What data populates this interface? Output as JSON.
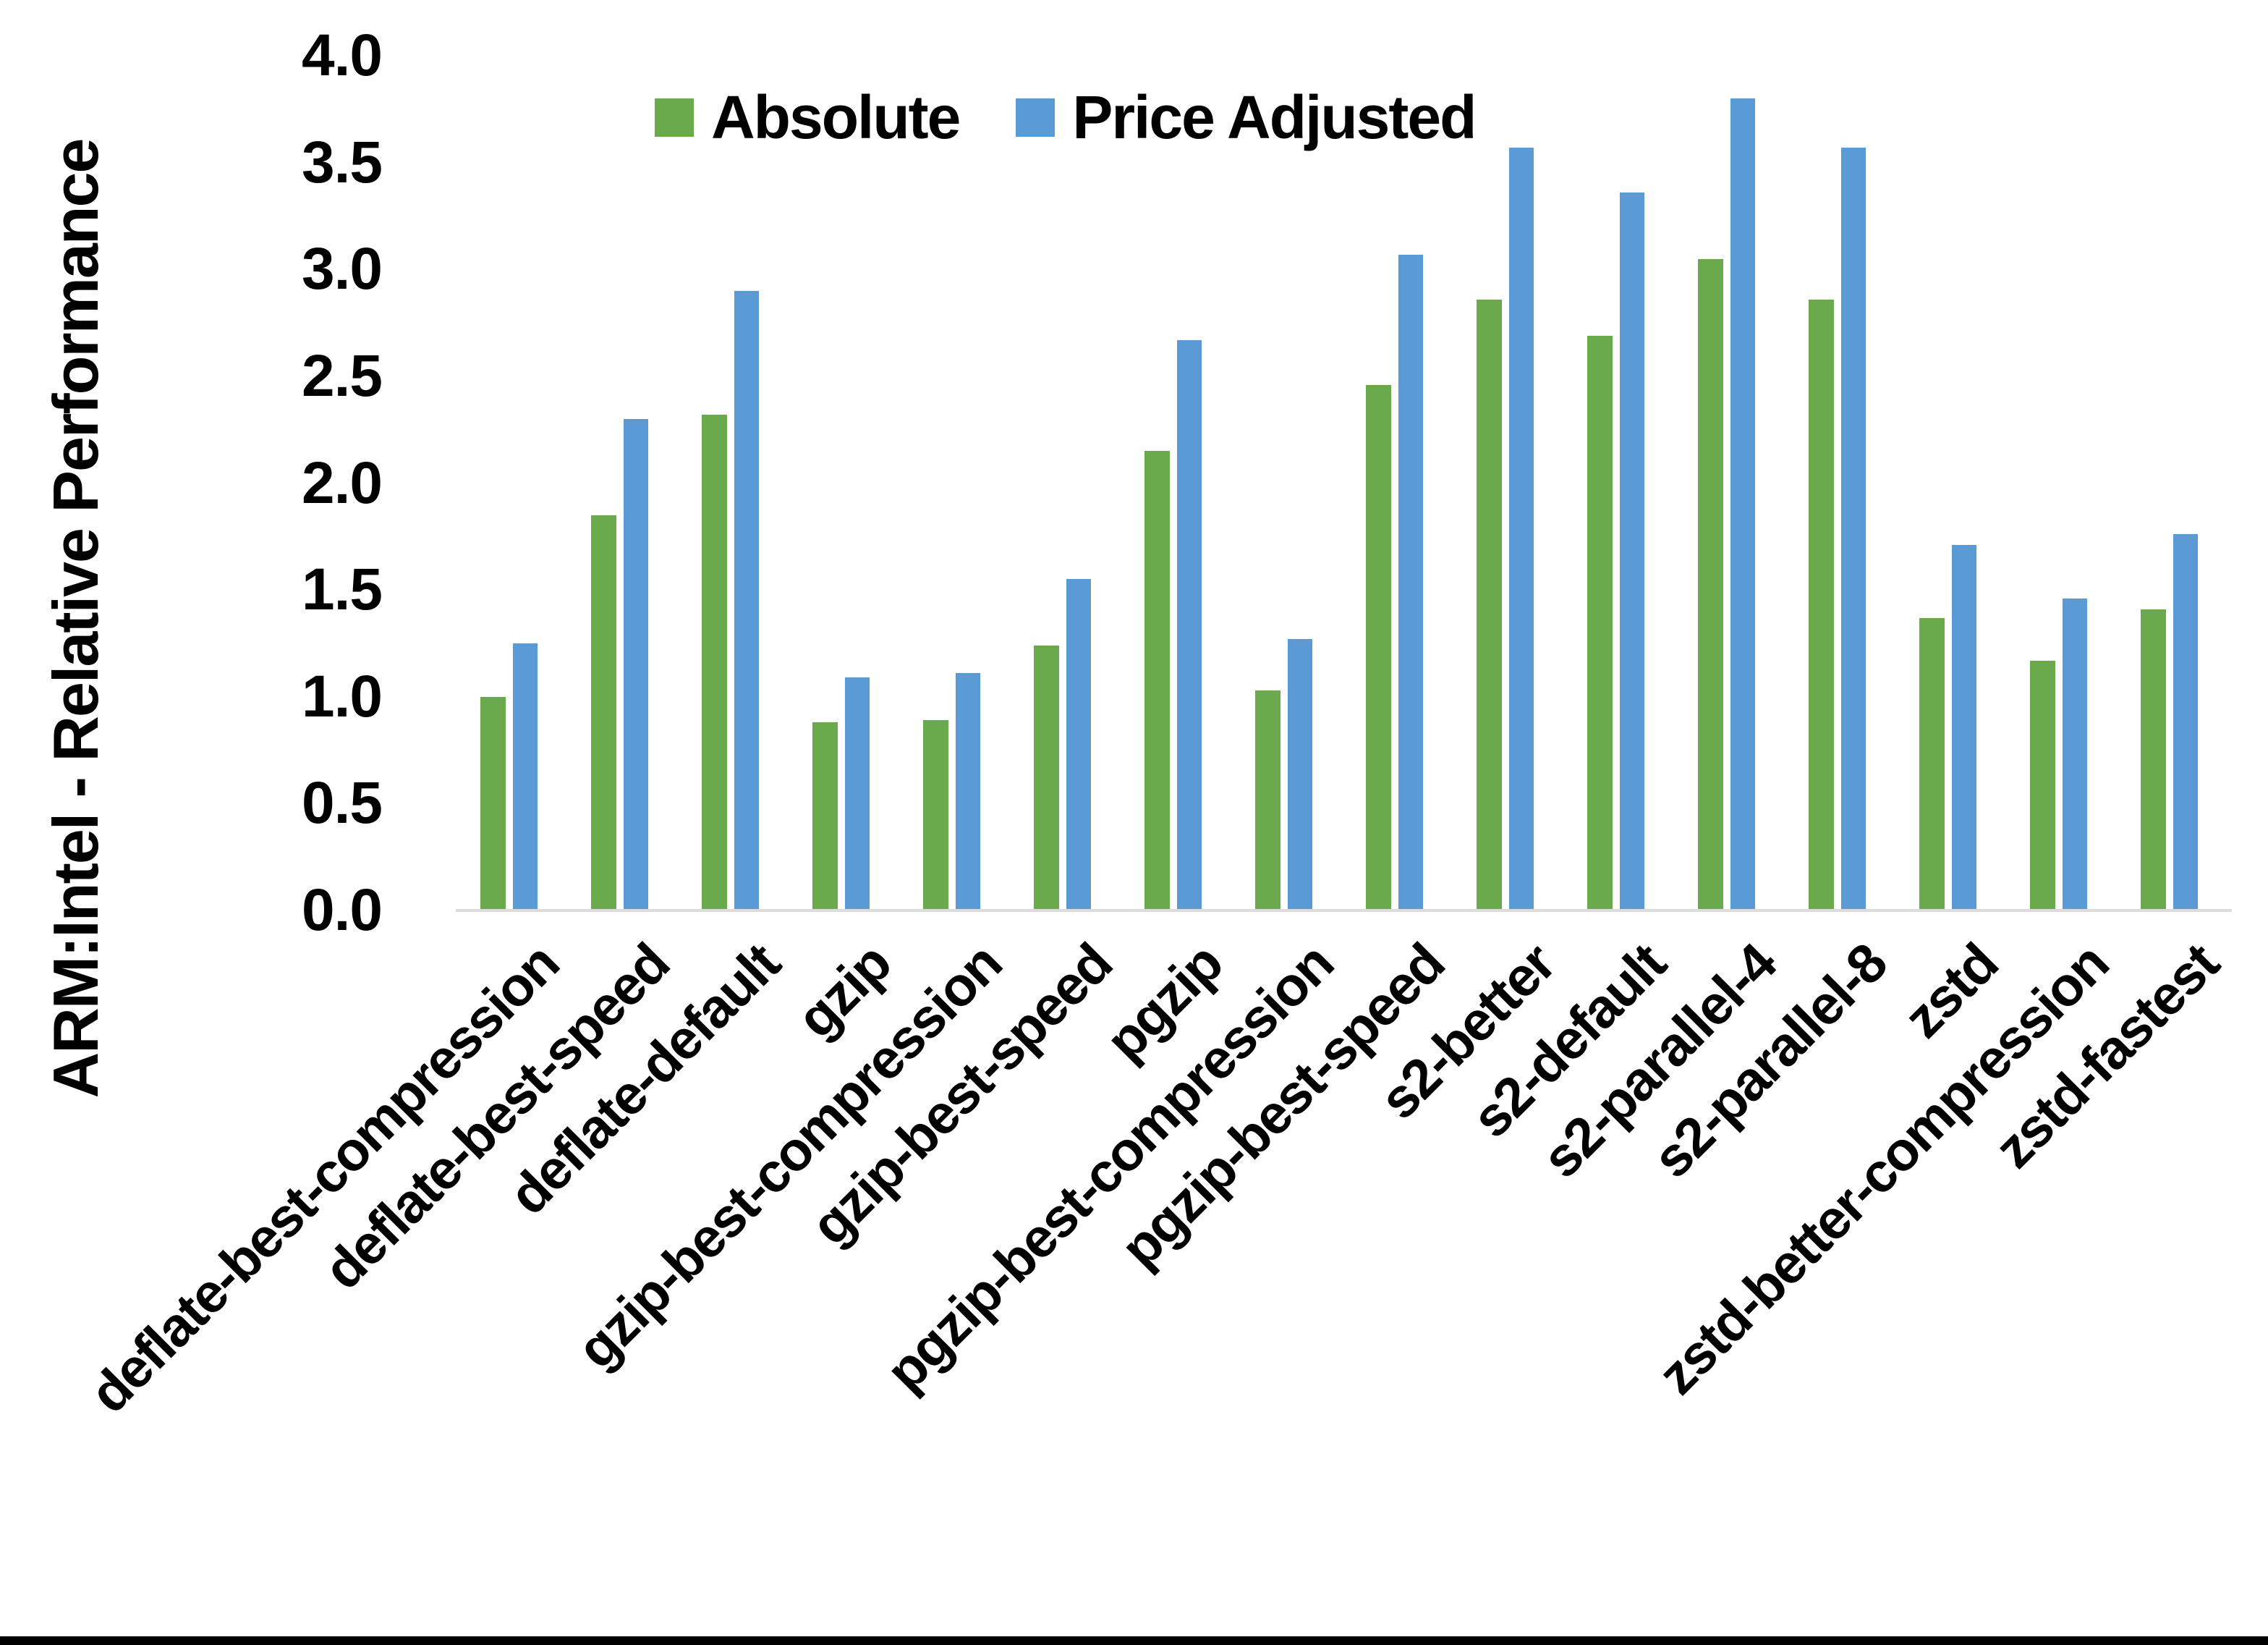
{
  "chart_data": {
    "type": "bar",
    "title": "",
    "xlabel": "",
    "ylabel": "ARM:Intel - Relative Performance",
    "ylim": [
      0.0,
      4.0
    ],
    "ytick_step": 0.5,
    "yticks": [
      "4.0",
      "3.5",
      "3.0",
      "2.5",
      "2.0",
      "1.5",
      "1.0",
      "0.5",
      "0.0"
    ],
    "grid": false,
    "legend_position": "top-center",
    "axis_line_color": "#dcdcdc",
    "background_color": "#ffffff",
    "categories": [
      "deflate-best-compression",
      "deflate-best-speed",
      "deflate-default",
      "gzip",
      "gzip-best-compression",
      "gzip-best-speed",
      "pgzip",
      "pgzip-best-compression",
      "pgzip-best-speed",
      "s2-better",
      "s2-default",
      "s2-parallel-4",
      "s2-parallel-8",
      "zstd",
      "zstd-better-compression",
      "zstd-fastest"
    ],
    "series": [
      {
        "name": "Absolute",
        "color": "#6aaa4c",
        "values": [
          1.0,
          1.85,
          2.32,
          0.88,
          0.89,
          1.24,
          2.15,
          1.03,
          2.46,
          2.86,
          2.69,
          3.05,
          2.86,
          1.37,
          1.17,
          1.41
        ]
      },
      {
        "name": "Price Adjusted",
        "color": "#5b9bd5",
        "values": [
          1.25,
          2.3,
          2.9,
          1.09,
          1.11,
          1.55,
          2.67,
          1.27,
          3.07,
          3.57,
          3.36,
          3.8,
          3.57,
          1.71,
          1.46,
          1.76
        ]
      }
    ]
  }
}
